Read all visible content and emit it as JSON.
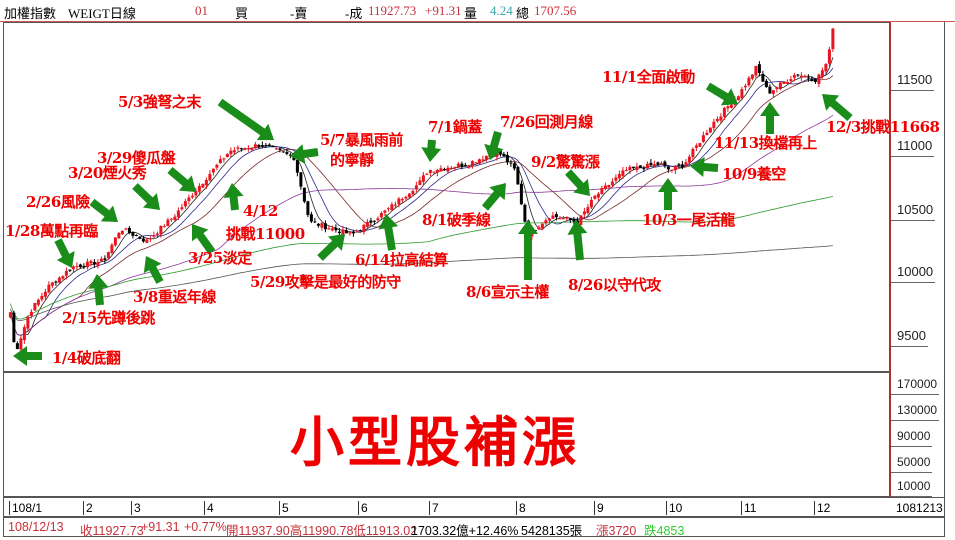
{
  "topbar": {
    "name": "加權指數",
    "code": "WEIGT日線",
    "num": "01",
    "buy": "買",
    "sell": "-賣",
    "deal": "-成",
    "price": "11927.73",
    "change": "+91.31",
    "vol_label": "量",
    "vol": "4.24",
    "total_label": "總",
    "total": "1707.56"
  },
  "title": "小型股補漲",
  "status": {
    "date": "108/12/13",
    "close": "收11927.73",
    "chg": "+91.31",
    "pct": "+0.77%",
    "ohl": "開11937.90高11990.78低11913.02",
    "amount": "1703.32億+12.46%",
    "lots": "5428135張",
    "up": "漲3720",
    "down": "跌4853"
  },
  "colors": {
    "up": "#e8141e",
    "down": "#000000",
    "annotation": "#e00000",
    "arrow": "#1a8c1a",
    "ma5": "#222222",
    "ma10": "#2a2a8a",
    "ma20": "#7a2a2a",
    "ma60": "#8a3a9a",
    "ma120": "#2a9a2a",
    "ma240": "#555555"
  },
  "chart_data": {
    "type": "candlestick",
    "y_axis": {
      "ticks": [
        "11500",
        "11000",
        "10500",
        "10000",
        "9500"
      ],
      "range": [
        9300,
        11950
      ]
    },
    "volume_axis": {
      "ticks": [
        "170000",
        "130000",
        "90000",
        "50000",
        "10000"
      ]
    },
    "x_axis": {
      "ticks": [
        "108/1",
        "2",
        "3",
        "4",
        "5",
        "6",
        "7",
        "8",
        "9",
        "10",
        "11",
        "12",
        "1081213"
      ]
    },
    "moving_averages": [
      "5",
      "10",
      "20",
      "60",
      "120",
      "240"
    ],
    "close_path": [
      [
        "1/2",
        9700
      ],
      [
        "1/4",
        9380
      ],
      [
        "1/10",
        9700
      ],
      [
        "1/18",
        9900
      ],
      [
        "1/28",
        10050
      ],
      [
        "2/15",
        10100
      ],
      [
        "2/26",
        10350
      ],
      [
        "3/8",
        10250
      ],
      [
        "3/20",
        10450
      ],
      [
        "3/29",
        10650
      ],
      [
        "4/12",
        10950
      ],
      [
        "4/25",
        11000
      ],
      [
        "5/7",
        10900
      ],
      [
        "5/13",
        10400
      ],
      [
        "5/29",
        10300
      ],
      [
        "6/14",
        10500
      ],
      [
        "6/28",
        10700
      ],
      [
        "7/1",
        10800
      ],
      [
        "7/15",
        10850
      ],
      [
        "7/26",
        10950
      ],
      [
        "8/1",
        10800
      ],
      [
        "8/6",
        10300
      ],
      [
        "8/15",
        10450
      ],
      [
        "8/26",
        10400
      ],
      [
        "9/2",
        10600
      ],
      [
        "9/15",
        10800
      ],
      [
        "9/30",
        10850
      ],
      [
        "10/3",
        10800
      ],
      [
        "10/9",
        10850
      ],
      [
        "10/20",
        11150
      ],
      [
        "11/1",
        11400
      ],
      [
        "11/8",
        11600
      ],
      [
        "11/13",
        11400
      ],
      [
        "11/25",
        11550
      ],
      [
        "12/3",
        11500
      ],
      [
        "12/10",
        11650
      ],
      [
        "12/13",
        11928
      ]
    ],
    "annotations": [
      "1/4破底翻",
      "1/28萬點再臨",
      "2/15先蹲後跳",
      "2/26風險",
      "3/8重返年線",
      "3/20煙火秀",
      "3/29傻瓜盤",
      "3/25淡定",
      "4/12",
      "挑戰11000",
      "5/3強弩之末",
      "5/7暴風雨前",
      "的寧靜",
      "5/29攻擊是最好的防守",
      "6/14拉高結算",
      "7/1鍋蓋",
      "7/26回測月線",
      "8/1破季線",
      "8/6宣示主權",
      "9/2驚驚漲",
      "8/26以守代攻",
      "10/3一尾活龍",
      "10/9養空",
      "11/1全面啟動",
      "11/13換檔再上",
      "12/3挑戰11668"
    ]
  }
}
